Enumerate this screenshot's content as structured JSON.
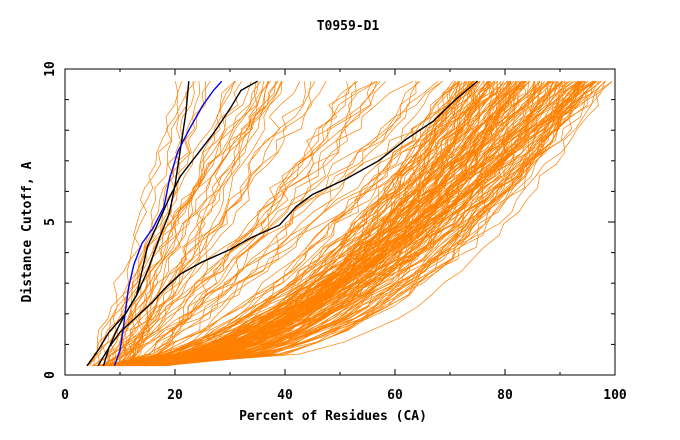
{
  "chart_data": {
    "type": "line",
    "title": "T0959-D1",
    "xlabel": "Percent of Residues (CA)",
    "ylabel": "Distance Cutoff, A",
    "xlim": [
      0,
      100
    ],
    "ylim": [
      0,
      10
    ],
    "xticks": [
      "0",
      "20",
      "40",
      "60",
      "80",
      "100"
    ],
    "yticks": [
      "0",
      "5",
      "10"
    ],
    "grid": false,
    "legend": "none",
    "colors": {
      "bundle": "#ff8000",
      "highlight_black": "#000000",
      "highlight_blue": "#0000ff"
    },
    "series": [
      {
        "color": "#000000",
        "points": [
          [
            7,
            0.3
          ],
          [
            8,
            0.9
          ],
          [
            9.5,
            1.5
          ],
          [
            11,
            2
          ],
          [
            13,
            2.6
          ],
          [
            15,
            3.4
          ],
          [
            17,
            4.4
          ],
          [
            19,
            5.3
          ],
          [
            20,
            6.2
          ],
          [
            21,
            7.4
          ],
          [
            22,
            8.6
          ],
          [
            22.5,
            9.6
          ]
        ]
      },
      {
        "color": "#0000ff",
        "points": [
          [
            9,
            0.3
          ],
          [
            10,
            0.8
          ],
          [
            10.5,
            1.4
          ],
          [
            11,
            2.1
          ],
          [
            11.5,
            2.8
          ],
          [
            12.5,
            3.6
          ],
          [
            14,
            4.3
          ],
          [
            16,
            4.8
          ],
          [
            18,
            5.5
          ],
          [
            19,
            6.4
          ],
          [
            20.5,
            7.3
          ],
          [
            22.5,
            8
          ],
          [
            25,
            8.8
          ],
          [
            27,
            9.3
          ],
          [
            28.5,
            9.6
          ]
        ]
      },
      {
        "color": "#000000",
        "points": [
          [
            4,
            0.3
          ],
          [
            6,
            0.8
          ],
          [
            8,
            1.4
          ],
          [
            11,
            2
          ],
          [
            13,
            2.6
          ],
          [
            14,
            3.4
          ],
          [
            15,
            4.2
          ],
          [
            17,
            5
          ],
          [
            19,
            5.8
          ],
          [
            21,
            6.5
          ],
          [
            24,
            7.2
          ],
          [
            27,
            7.9
          ],
          [
            30,
            8.7
          ],
          [
            32,
            9.3
          ],
          [
            35,
            9.6
          ]
        ]
      },
      {
        "color": "#000000",
        "points": [
          [
            6,
            0.3
          ],
          [
            8,
            0.9
          ],
          [
            10,
            1.4
          ],
          [
            13,
            1.9
          ],
          [
            16,
            2.4
          ],
          [
            18,
            2.8
          ],
          [
            21,
            3.3
          ],
          [
            25,
            3.7
          ],
          [
            30,
            4.1
          ],
          [
            34,
            4.5
          ],
          [
            39,
            4.9
          ],
          [
            42,
            5.5
          ],
          [
            45,
            5.9
          ],
          [
            51,
            6.4
          ],
          [
            57,
            7
          ],
          [
            62,
            7.7
          ],
          [
            67,
            8.3
          ],
          [
            71,
            9
          ],
          [
            75,
            9.6
          ]
        ]
      }
    ]
  }
}
